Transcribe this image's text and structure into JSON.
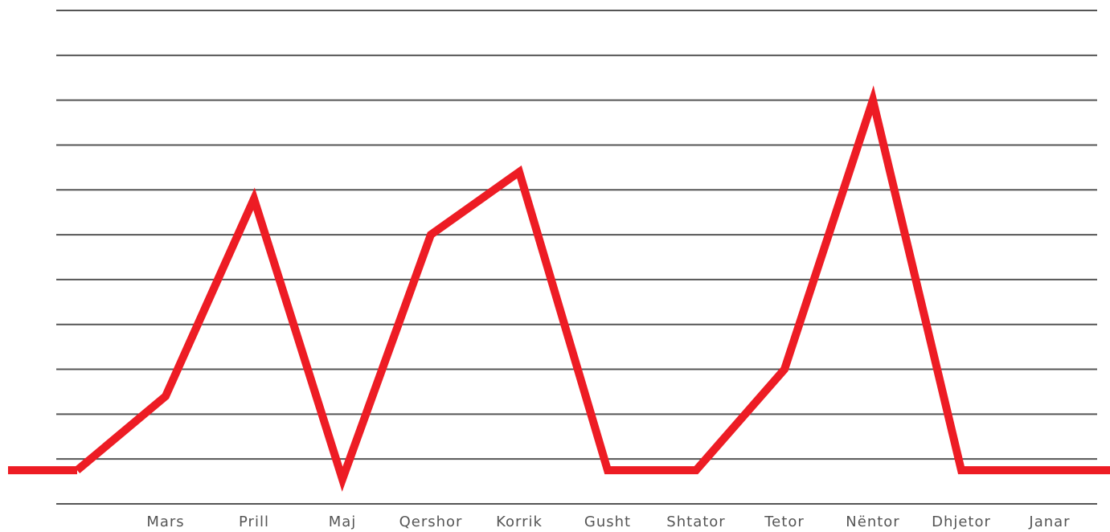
{
  "chart_data": {
    "type": "line",
    "categories": [
      null,
      "Mars",
      "Prill",
      "Maj",
      "Qershor",
      "Korrik",
      "Gusht",
      "Shtator",
      "Tetor",
      "Nëntor",
      "Dhjetor",
      "Janar"
    ],
    "series": [
      {
        "color": "#ed1c24",
        "values": [
          0.75,
          2.4,
          6.8,
          0.55,
          6.0,
          7.4,
          0.75,
          0.75,
          3.0,
          9.0,
          0.75,
          0.75
        ]
      }
    ],
    "ylim": [
      0,
      11
    ],
    "yticks": [
      0,
      1,
      2,
      3,
      4,
      5,
      6,
      7,
      8,
      9,
      10,
      11
    ],
    "grid": true
  }
}
